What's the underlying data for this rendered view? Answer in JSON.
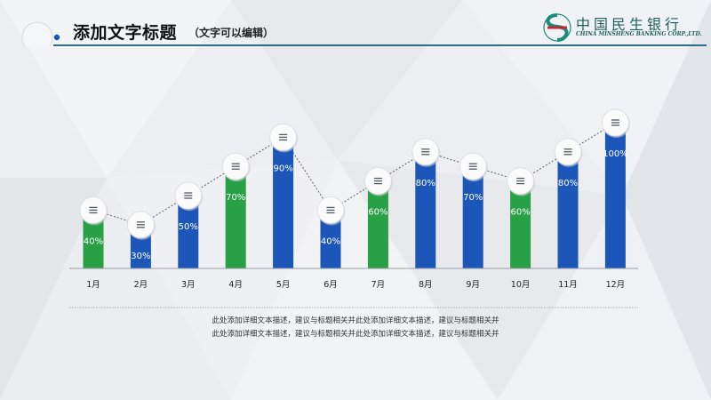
{
  "header": {
    "title": "添加文字标题",
    "subtitle": "（文字可以编辑）",
    "logo": {
      "name_cn": "中国民生银行",
      "name_en": "CHINA MINSHENG BANKING CORP.,LTD.",
      "icon": "minsheng-logo-icon",
      "color": "#1f5f5a"
    }
  },
  "chart_data": {
    "type": "bar",
    "categories": [
      "1月",
      "2月",
      "3月",
      "4月",
      "5月",
      "6月",
      "7月",
      "8月",
      "9月",
      "10月",
      "11月",
      "12月"
    ],
    "values": [
      40,
      30,
      50,
      70,
      90,
      40,
      60,
      80,
      70,
      60,
      80,
      100
    ],
    "value_labels": [
      "40%",
      "30%",
      "50%",
      "70%",
      "90%",
      "40%",
      "60%",
      "80%",
      "70%",
      "60%",
      "80%",
      "100%"
    ],
    "bar_colors": [
      "#27a046",
      "#1c56b8",
      "#1c56b8",
      "#27a046",
      "#1c56b8",
      "#1c56b8",
      "#27a046",
      "#1c56b8",
      "#1c56b8",
      "#27a046",
      "#1c56b8",
      "#1c56b8"
    ],
    "marker_icon": "menu-lines-icon",
    "connector": "dotted-line",
    "ylim": [
      0,
      100
    ],
    "grid": false,
    "legend": "none"
  },
  "description": {
    "lines": [
      "此处添加详细文本描述，建议与标题相关并此处添加详细文本描述，建议与标题相关并",
      "此处添加详细文本描述，建议与标题相关并此处添加详细文本描述，建议与标题相关并"
    ]
  },
  "colors": {
    "green": "#27a046",
    "blue": "#1c56b8",
    "rule": "#2f6f83",
    "background": "#eceef1"
  }
}
